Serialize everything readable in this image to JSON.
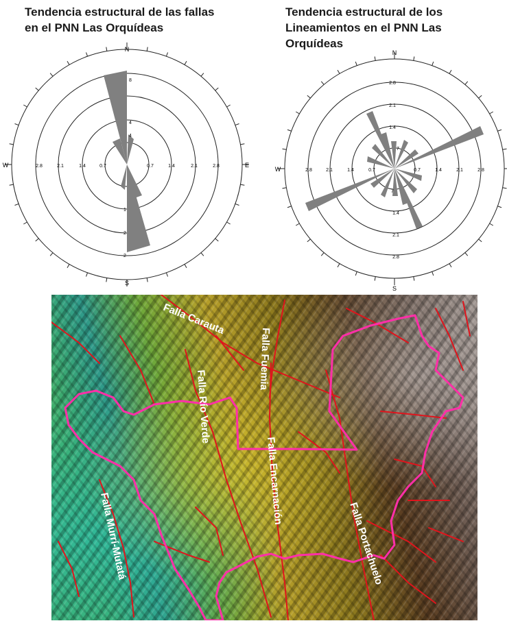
{
  "rose_left": {
    "title": "Tendencia estructural de las fallas en el PNN Las Orquídeas",
    "compass": {
      "n": "N",
      "s": "S",
      "e": "E",
      "w": "W"
    },
    "ring_labels_n": [
      "4",
      "4",
      "8"
    ],
    "ring_labels_s": [
      "1",
      "2",
      "2"
    ],
    "ring_labels_ew": [
      "0.7",
      "1.4",
      "2.1",
      "2.8"
    ]
  },
  "rose_right": {
    "title": "Tendencia estructural de los Lineamientos en el PNN Las Orquídeas",
    "compass": {
      "n": "N",
      "s": "S",
      "w": "W"
    },
    "ring_labels_n": [
      "7",
      "1.4",
      "2.1",
      "2.8"
    ],
    "ring_labels_s": [
      "7",
      "1.4",
      "2.1",
      "2.8"
    ],
    "ring_labels_ew": [
      "0.7",
      "1.4",
      "2.1",
      "2.8"
    ]
  },
  "map": {
    "fault_labels": [
      "Falla Carauta",
      "Falla Fuemia",
      "Falla Río Verde",
      "Falla Encarnación",
      "Falla Portachuelo",
      "Falla Murrí-Mutatá"
    ],
    "colors": {
      "fault": "#e0141c",
      "park_boundary": "#ff2fa8"
    }
  }
}
